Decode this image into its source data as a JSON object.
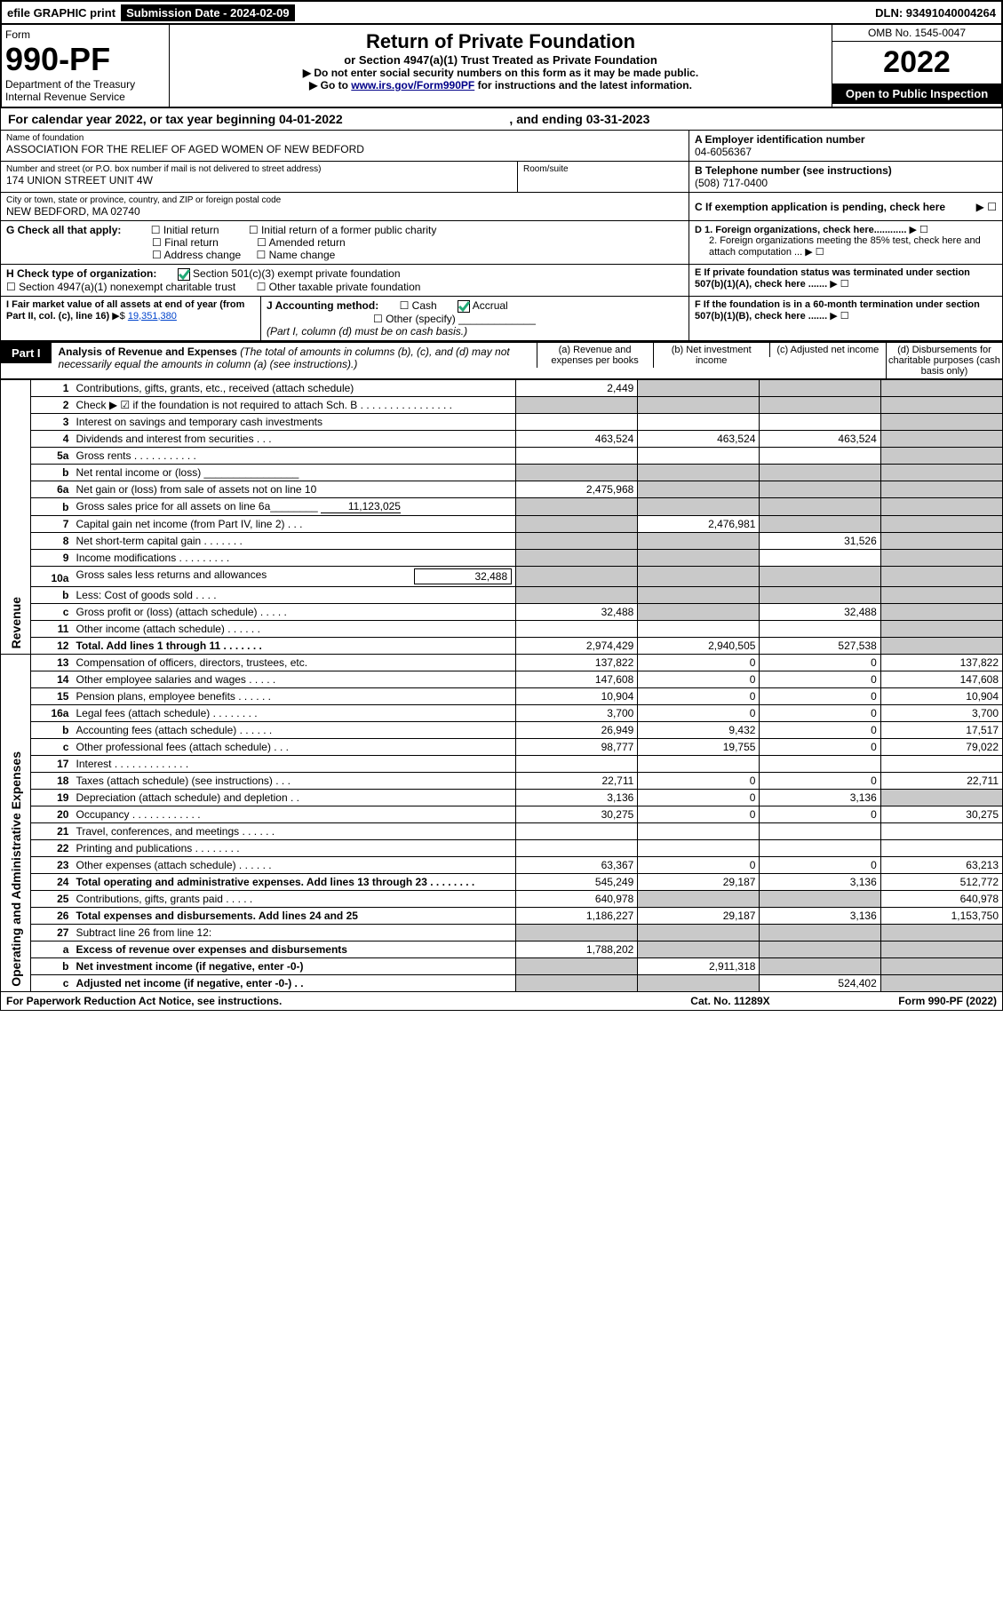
{
  "header_bar": {
    "efile": "efile GRAPHIC print",
    "submission_label": "Submission Date - 2024-02-09",
    "dln": "DLN: 93491040004264"
  },
  "title_block": {
    "form_word": "Form",
    "form_num": "990-PF",
    "dept": "Department of the Treasury",
    "irs": "Internal Revenue Service",
    "title": "Return of Private Foundation",
    "subtitle": "or Section 4947(a)(1) Trust Treated as Private Foundation",
    "instr1": "▶ Do not enter social security numbers on this form as it may be made public.",
    "instr2_pre": "▶ Go to ",
    "instr2_link": "www.irs.gov/Form990PF",
    "instr2_post": " for instructions and the latest information.",
    "omb": "OMB No. 1545-0047",
    "year": "2022",
    "open": "Open to Public Inspection"
  },
  "cal_year": {
    "label": "For calendar year 2022, or tax year beginning ",
    "begin": "04-01-2022",
    "mid": " , and ending ",
    "end": "03-31-2023"
  },
  "identity": {
    "name_label": "Name of foundation",
    "name": "ASSOCIATION FOR THE RELIEF OF AGED WOMEN OF NEW BEDFORD",
    "addr_label": "Number and street (or P.O. box number if mail is not delivered to street address)",
    "addr": "174 UNION STREET UNIT 4W",
    "room_label": "Room/suite",
    "city_label": "City or town, state or province, country, and ZIP or foreign postal code",
    "city": "NEW BEDFORD, MA  02740",
    "ein_label": "A Employer identification number",
    "ein": "04-6056367",
    "phone_label": "B Telephone number (see instructions)",
    "phone": "(508) 717-0400",
    "c_label": "C If exemption application is pending, check here",
    "d1": "D 1. Foreign organizations, check here............",
    "d2": "2. Foreign organizations meeting the 85% test, check here and attach computation ...",
    "e": "E  If private foundation status was terminated under section 507(b)(1)(A), check here .......",
    "f": "F  If the foundation is in a 60-month termination under section 507(b)(1)(B), check here .......",
    "g_label": "G Check all that apply:",
    "g_opts": [
      "Initial return",
      "Final return",
      "Address change",
      "Initial return of a former public charity",
      "Amended return",
      "Name change"
    ],
    "h_label": "H Check type of organization:",
    "h_501": "Section 501(c)(3) exempt private foundation",
    "h_4947": "Section 4947(a)(1) nonexempt charitable trust",
    "h_other": "Other taxable private foundation",
    "i_label": "I Fair market value of all assets at end of year (from Part II, col. (c), line 16)",
    "i_val": "19,351,380",
    "j_label": "J Accounting method:",
    "j_cash": "Cash",
    "j_accrual": "Accrual",
    "j_other": "Other (specify)",
    "j_note": "(Part I, column (d) must be on cash basis.)"
  },
  "part1_header": {
    "label": "Part I",
    "title": "Analysis of Revenue and Expenses",
    "title_note": " (The total of amounts in columns (b), (c), and (d) may not necessarily equal the amounts in column (a) (see instructions).)",
    "col_a": "(a)  Revenue and expenses per books",
    "col_b": "(b)  Net investment income",
    "col_c": "(c)  Adjusted net income",
    "col_d": "(d)  Disbursements for charitable purposes (cash basis only)"
  },
  "section_labels": {
    "revenue": "Revenue",
    "operating": "Operating and Administrative Expenses"
  },
  "rows": [
    {
      "n": "1",
      "desc": "Contributions, gifts, grants, etc., received (attach schedule)",
      "a": "2,449",
      "b": "",
      "c": "",
      "d": "",
      "grey": [
        "b",
        "c",
        "d"
      ]
    },
    {
      "n": "2",
      "desc": "Check ▶ ☑ if the foundation is not required to attach Sch. B    .  .  .  .  .  .  .  .  .  .  .  .  .  .  .  .",
      "cspan": true
    },
    {
      "n": "3",
      "desc": "Interest on savings and temporary cash investments",
      "a": "",
      "b": "",
      "c": "",
      "d": "",
      "grey": [
        "d"
      ]
    },
    {
      "n": "4",
      "desc": "Dividends and interest from securities    .    .    .",
      "a": "463,524",
      "b": "463,524",
      "c": "463,524",
      "d": "",
      "grey": [
        "d"
      ]
    },
    {
      "n": "5a",
      "desc": "Gross rents    .    .    .    .    .    .    .    .    .    .    .",
      "a": "",
      "b": "",
      "c": "",
      "d": "",
      "grey": [
        "d"
      ]
    },
    {
      "n": "b",
      "desc": "Net rental income or (loss)   ________________",
      "cspan": true
    },
    {
      "n": "6a",
      "desc": "Net gain or (loss) from sale of assets not on line 10",
      "a": "2,475,968",
      "b": "",
      "c": "",
      "d": "",
      "grey": [
        "b",
        "c",
        "d"
      ]
    },
    {
      "n": "b",
      "desc": "Gross sales price for all assets on line 6a________",
      "val6b": "11,123,025",
      "cspan": true
    },
    {
      "n": "7",
      "desc": "Capital gain net income (from Part IV, line 2)    .    .    .",
      "a": "",
      "b": "2,476,981",
      "c": "",
      "d": "",
      "grey": [
        "a",
        "c",
        "d"
      ]
    },
    {
      "n": "8",
      "desc": "Net short-term capital gain    .    .    .    .    .    .    .",
      "a": "",
      "b": "",
      "c": "31,526",
      "d": "",
      "grey": [
        "a",
        "b",
        "d"
      ]
    },
    {
      "n": "9",
      "desc": "Income modifications  .    .    .    .    .    .    .    .    .",
      "a": "",
      "b": "",
      "c": "",
      "d": "",
      "grey": [
        "a",
        "b",
        "d"
      ]
    },
    {
      "n": "10a",
      "desc": "Gross sales less returns and allowances",
      "val10a": "32,488",
      "cspan": true
    },
    {
      "n": "b",
      "desc": "Less: Cost of goods sold    .    .    .    .",
      "cspan": true
    },
    {
      "n": "c",
      "desc": "Gross profit or (loss) (attach schedule)     .    .    .    .    .",
      "a": "32,488",
      "b": "",
      "c": "32,488",
      "d": "",
      "grey": [
        "b",
        "d"
      ]
    },
    {
      "n": "11",
      "desc": "Other income (attach schedule)    .    .    .    .    .    .",
      "a": "",
      "b": "",
      "c": "",
      "d": "",
      "grey": [
        "d"
      ]
    },
    {
      "n": "12",
      "desc": "Total. Add lines 1 through 11    .    .    .    .    .    .    .",
      "bold": true,
      "a": "2,974,429",
      "b": "2,940,505",
      "c": "527,538",
      "d": "",
      "grey": [
        "d"
      ]
    },
    {
      "n": "13",
      "desc": "Compensation of officers, directors, trustees, etc.",
      "a": "137,822",
      "b": "0",
      "c": "0",
      "d": "137,822"
    },
    {
      "n": "14",
      "desc": "Other employee salaries and wages    .    .    .    .    .",
      "a": "147,608",
      "b": "0",
      "c": "0",
      "d": "147,608"
    },
    {
      "n": "15",
      "desc": "Pension plans, employee benefits  .    .    .    .    .    .",
      "a": "10,904",
      "b": "0",
      "c": "0",
      "d": "10,904"
    },
    {
      "n": "16a",
      "desc": "Legal fees (attach schedule) .    .    .    .    .    .    .    .",
      "a": "3,700",
      "b": "0",
      "c": "0",
      "d": "3,700"
    },
    {
      "n": "b",
      "desc": "Accounting fees (attach schedule)  .    .    .    .    .    .",
      "a": "26,949",
      "b": "9,432",
      "c": "0",
      "d": "17,517"
    },
    {
      "n": "c",
      "desc": "Other professional fees (attach schedule)    .    .    .",
      "a": "98,777",
      "b": "19,755",
      "c": "0",
      "d": "79,022"
    },
    {
      "n": "17",
      "desc": "Interest  .    .    .    .    .    .    .    .    .    .    .    .    .",
      "a": "",
      "b": "",
      "c": "",
      "d": ""
    },
    {
      "n": "18",
      "desc": "Taxes (attach schedule) (see instructions)    .    .    .",
      "a": "22,711",
      "b": "0",
      "c": "0",
      "d": "22,711"
    },
    {
      "n": "19",
      "desc": "Depreciation (attach schedule) and depletion    .    .",
      "a": "3,136",
      "b": "0",
      "c": "3,136",
      "d": "",
      "grey": [
        "d"
      ]
    },
    {
      "n": "20",
      "desc": "Occupancy .    .    .    .    .    .    .    .    .    .    .    .",
      "a": "30,275",
      "b": "0",
      "c": "0",
      "d": "30,275"
    },
    {
      "n": "21",
      "desc": "Travel, conferences, and meetings  .    .    .    .    .    .",
      "a": "",
      "b": "",
      "c": "",
      "d": ""
    },
    {
      "n": "22",
      "desc": "Printing and publications .    .    .    .    .    .    .    .",
      "a": "",
      "b": "",
      "c": "",
      "d": ""
    },
    {
      "n": "23",
      "desc": "Other expenses (attach schedule) .    .    .    .    .    .",
      "a": "63,367",
      "b": "0",
      "c": "0",
      "d": "63,213"
    },
    {
      "n": "24",
      "desc": "Total operating and administrative expenses. Add lines 13 through 23    .    .    .    .    .    .    .    .",
      "bold": true,
      "a": "545,249",
      "b": "29,187",
      "c": "3,136",
      "d": "512,772"
    },
    {
      "n": "25",
      "desc": "Contributions, gifts, grants paid     .    .    .    .    .",
      "a": "640,978",
      "b": "",
      "c": "",
      "d": "640,978",
      "grey": [
        "b",
        "c"
      ]
    },
    {
      "n": "26",
      "desc": "Total expenses and disbursements. Add lines 24 and 25",
      "bold": true,
      "a": "1,186,227",
      "b": "29,187",
      "c": "3,136",
      "d": "1,153,750"
    },
    {
      "n": "27",
      "desc": "Subtract line 26 from line 12:",
      "cspan": true
    },
    {
      "n": "a",
      "desc": "Excess of revenue over expenses and disbursements",
      "bold": true,
      "a": "1,788,202",
      "b": "",
      "c": "",
      "d": "",
      "grey": [
        "b",
        "c",
        "d"
      ]
    },
    {
      "n": "b",
      "desc": "Net investment income (if negative, enter -0-)",
      "bold": true,
      "a": "",
      "b": "2,911,318",
      "c": "",
      "d": "",
      "grey": [
        "a",
        "c",
        "d"
      ]
    },
    {
      "n": "c",
      "desc": "Adjusted net income (if negative, enter -0-)    .    .",
      "bold": true,
      "a": "",
      "b": "",
      "c": "524,402",
      "d": "",
      "grey": [
        "a",
        "b",
        "d"
      ]
    }
  ],
  "colors": {
    "grey": "#c9c9c9",
    "link": "#0044cc",
    "check_green": "#22aa77"
  },
  "layout": {
    "col_widths": {
      "vert": 26,
      "num": 40,
      "desc": 520,
      "a": 135,
      "b": 135,
      "c": 135,
      "d": 135
    }
  },
  "footer": {
    "left": "For Paperwork Reduction Act Notice, see instructions.",
    "mid": "Cat. No. 11289X",
    "right": "Form 990-PF (2022)"
  }
}
